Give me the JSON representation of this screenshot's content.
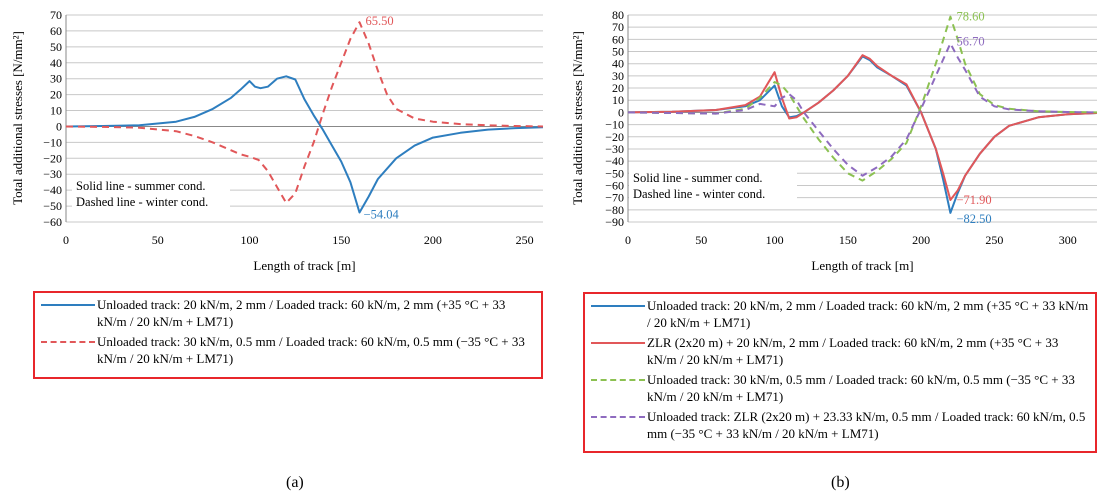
{
  "chart_data": [
    {
      "panel": "a",
      "type": "line",
      "xlabel": "Length of track [m]",
      "ylabel": "Total additional stresses [N/mm²]",
      "xlim": [
        0,
        260
      ],
      "ylim": [
        -60,
        70
      ],
      "xticks": [
        0,
        50,
        100,
        150,
        200,
        250
      ],
      "yticks": [
        70,
        60,
        50,
        40,
        30,
        20,
        10,
        0,
        -10,
        -20,
        -30,
        -40,
        -50,
        -60
      ],
      "ytick_labels": [
        "70",
        "60",
        "50",
        "40",
        "30",
        "20",
        "10",
        "0",
        "−10",
        "−20",
        "−30",
        "−40",
        "−50",
        "−60"
      ],
      "grid": "horizontal",
      "note_lines": [
        "Solid line - summer cond.",
        "Dashed line - winter cond."
      ],
      "series": [
        {
          "label": "Unloaded track: 20 kN/m, 2 mm / Loaded track: 60 kN/m, 2 mm (+35 °C + 33 kN/m / 20 kN/m + LM71)",
          "color": "#2e7ebf",
          "dash": "solid",
          "x": [
            0,
            20,
            40,
            60,
            70,
            80,
            90,
            95,
            100,
            103,
            106,
            110,
            115,
            120,
            125,
            130,
            135,
            140,
            145,
            150,
            155,
            160,
            165,
            170,
            180,
            190,
            200,
            215,
            230,
            245,
            260
          ],
          "y": [
            0,
            0.3,
            0.8,
            3,
            6,
            11,
            18,
            23,
            28.5,
            25,
            24,
            25,
            30,
            31.5,
            29.5,
            17,
            7,
            -2,
            -12,
            -22,
            -35,
            -54.04,
            -44,
            -33,
            -20,
            -12,
            -7,
            -4,
            -2,
            -1,
            -0.5
          ]
        },
        {
          "label": "Unloaded track: 30 kN/m, 0.5 mm / Loaded track: 60 kN/m, 0.5 mm (−35 °C + 33 kN/m / 20 kN/m + LM71)",
          "color": "#e15759",
          "dash": "dashed",
          "x": [
            0,
            20,
            40,
            60,
            70,
            80,
            90,
            95,
            100,
            105,
            110,
            115,
            120,
            125,
            130,
            135,
            140,
            145,
            150,
            155,
            160,
            165,
            170,
            175,
            180,
            190,
            200,
            215,
            230,
            245,
            260
          ],
          "y": [
            0,
            -0.3,
            -0.8,
            -3,
            -6,
            -10,
            -15,
            -17.5,
            -19,
            -21,
            -28,
            -38,
            -48,
            -42,
            -25,
            -10,
            8,
            25,
            40,
            55,
            65.5,
            52,
            35,
            20,
            11,
            5,
            3,
            1.5,
            0.7,
            0.3,
            0
          ]
        }
      ],
      "annotations": [
        {
          "text": "65.50",
          "x": 160,
          "y": 65.5,
          "color": "#e15759"
        },
        {
          "text": "−54.04",
          "x": 160,
          "y": -54.04,
          "color": "#2e7ebf"
        }
      ]
    },
    {
      "panel": "b",
      "type": "line",
      "xlabel": "Length of track [m]",
      "ylabel": "Total additional stresses [N/mm²]",
      "xlim": [
        0,
        320
      ],
      "ylim": [
        -90,
        80
      ],
      "xticks": [
        0,
        50,
        100,
        150,
        200,
        250,
        300
      ],
      "yticks": [
        80,
        70,
        60,
        50,
        40,
        30,
        20,
        10,
        0,
        -10,
        -20,
        -30,
        -40,
        -50,
        -60,
        -70,
        -80,
        -90
      ],
      "ytick_labels": [
        "80",
        "70",
        "60",
        "50",
        "40",
        "30",
        "20",
        "10",
        "0",
        "−10",
        "−20",
        "−30",
        "−40",
        "−50",
        "−60",
        "−70",
        "−80",
        "−90"
      ],
      "grid": "horizontal",
      "note_lines": [
        "Solid line - summer cond.",
        "Dashed line - winter cond."
      ],
      "series": [
        {
          "label": "Unloaded track: 20 kN/m, 2 mm / Loaded track: 60 kN/m, 2 mm (+35 °C + 33 kN/m / 20 kN/m + LM71)",
          "color": "#2e7ebf",
          "dash": "solid",
          "x": [
            0,
            30,
            60,
            80,
            90,
            100,
            105,
            110,
            115,
            120,
            130,
            140,
            150,
            160,
            165,
            170,
            180,
            190,
            200,
            210,
            215,
            220,
            225,
            230,
            240,
            250,
            260,
            280,
            300,
            320
          ],
          "y": [
            0,
            0.5,
            2,
            5,
            10,
            22,
            5,
            -4,
            -3,
            0,
            8,
            18,
            30,
            46,
            43,
            37,
            30,
            22,
            0,
            -30,
            -55,
            -82.5,
            -66,
            -52,
            -34,
            -20,
            -11,
            -4,
            -1.5,
            -0.5
          ]
        },
        {
          "label": "ZLR (2x20 m) + 20 kN/m, 2 mm / Loaded track: 60 kN/m, 2 mm (+35 °C + 33 kN/m / 20 kN/m + LM71)",
          "color": "#e15759",
          "dash": "solid",
          "x": [
            0,
            30,
            60,
            80,
            90,
            100,
            105,
            110,
            115,
            120,
            130,
            140,
            150,
            160,
            165,
            170,
            180,
            190,
            200,
            210,
            215,
            220,
            225,
            230,
            240,
            250,
            260,
            280,
            300,
            320
          ],
          "y": [
            0,
            0.5,
            2,
            6,
            13,
            33,
            12,
            -5,
            -4,
            0,
            8,
            18,
            30,
            47,
            44,
            38,
            30,
            23,
            0,
            -30,
            -50,
            -71.9,
            -64,
            -52,
            -34,
            -20,
            -11,
            -4,
            -1.5,
            -0.5
          ]
        },
        {
          "label": "Unloaded track: 30 kN/m, 0.5 mm / Loaded track: 60 kN/m, 0.5 mm (−35 °C + 33 kN/m / 20 kN/m + LM71)",
          "color": "#8cc152",
          "dash": "dashed",
          "x": [
            0,
            30,
            60,
            80,
            90,
            100,
            105,
            110,
            115,
            120,
            130,
            140,
            150,
            160,
            170,
            180,
            190,
            200,
            210,
            220,
            225,
            230,
            240,
            250,
            260,
            280,
            300,
            320
          ],
          "y": [
            0,
            -0.5,
            -1,
            3,
            12,
            25,
            22,
            15,
            5,
            -5,
            -22,
            -37,
            -50,
            -56,
            -48,
            -38,
            -25,
            5,
            40,
            78.6,
            60,
            40,
            15,
            6,
            3,
            1,
            0.3,
            0
          ]
        },
        {
          "label": "Unloaded track: ZLR (2x20 m) + 23.33 kN/m, 0.5 mm / Loaded track: 60 kN/m, 0.5 mm (−35 °C + 33 kN/m / 20 kN/m + LM71)",
          "color": "#8e6bbf",
          "dash": "dashed",
          "x": [
            0,
            30,
            60,
            80,
            90,
            100,
            105,
            110,
            115,
            120,
            130,
            140,
            150,
            160,
            170,
            180,
            190,
            200,
            210,
            220,
            225,
            230,
            240,
            250,
            260,
            280,
            300,
            320
          ],
          "y": [
            0,
            -0.5,
            -1,
            2,
            7,
            5,
            12,
            15,
            10,
            0,
            -15,
            -30,
            -43,
            -52,
            -45,
            -36,
            -22,
            3,
            30,
            56.7,
            45,
            35,
            13,
            5,
            2.5,
            1,
            0.3,
            0
          ]
        }
      ],
      "annotations": [
        {
          "text": "78.60",
          "x": 220,
          "y": 78.6,
          "color": "#8cc152"
        },
        {
          "text": "56.70",
          "x": 220,
          "y": 56.7,
          "color": "#8e6bbf"
        },
        {
          "text": "−71.90",
          "x": 220,
          "y": -71.9,
          "color": "#e15759"
        },
        {
          "text": "−82.50",
          "x": 220,
          "y": -82.5,
          "color": "#2e7ebf"
        }
      ]
    }
  ],
  "panel_labels": [
    "(a)",
    "(b)"
  ]
}
